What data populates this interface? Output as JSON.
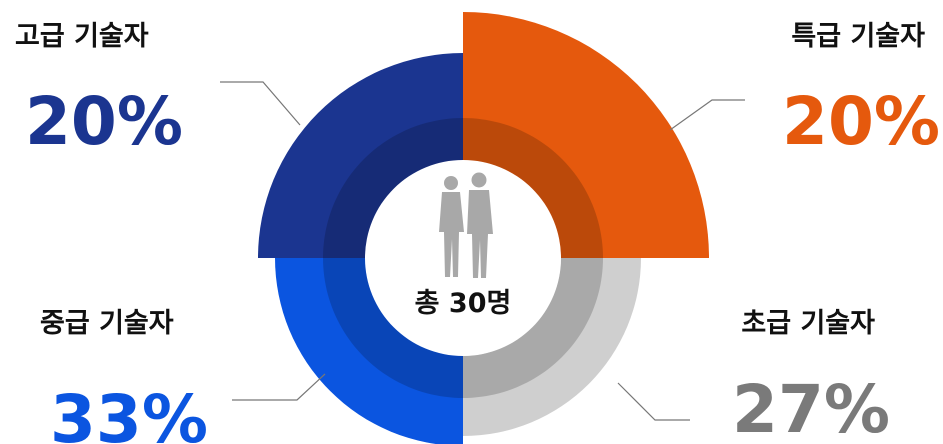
{
  "chart_data": {
    "type": "pie",
    "center_label": "총 30명",
    "categories": [
      "특급 기술자",
      "초급 기술자",
      "중급 기술자",
      "고급 기술자"
    ],
    "values": [
      20,
      27,
      33,
      20
    ],
    "value_labels": [
      "20%",
      "27%",
      "33%",
      "20%"
    ],
    "colors": [
      "#e5590d",
      "#cfcfcf",
      "#0b55e0",
      "#1b3590"
    ]
  }
}
